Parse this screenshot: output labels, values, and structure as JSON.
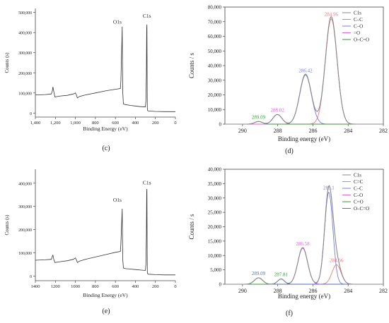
{
  "panels": [
    {
      "label": "(c)",
      "chart_data": {
        "type": "line",
        "xlabel": "Binding Energy (eV)",
        "ylabel": "Counts (s)",
        "xlim": [
          1400,
          0
        ],
        "ylim": [
          -20000,
          520000
        ],
        "x_ticks": [
          1400,
          1200,
          1000,
          800,
          600,
          400,
          200,
          0
        ],
        "x_tick_labels": [
          "1,400",
          "1,200",
          "1,000",
          "800",
          "600",
          "400",
          "200",
          "0"
        ],
        "y_ticks": [
          0,
          100000,
          200000,
          300000,
          400000,
          500000
        ],
        "y_tick_labels": [
          "0",
          "100,000",
          "200,000",
          "300,000",
          "400,000",
          "500,000"
        ],
        "annotations": [
          {
            "text": "O1s",
            "x": 531,
            "y": 445000
          },
          {
            "text": "C1s",
            "x": 285,
            "y": 475000
          }
        ],
        "series": [
          {
            "color": "#333333",
            "x": [
              1400,
              1300,
              1240,
              1230,
              1225,
              1215,
              1205,
              1150,
              1080,
              1020,
              1000,
              990,
              980,
              960,
              900,
              800,
              700,
              600,
              550,
              545,
              535,
              532,
              530,
              526,
              520,
              500,
              450,
              400,
              350,
              300,
              295,
              290,
              287,
              285,
              283,
              281,
              278,
              270,
              200,
              100,
              0
            ],
            "y": [
              90000,
              92000,
              95000,
              110000,
              130000,
              105000,
              80000,
              85000,
              88000,
              95000,
              100000,
              90000,
              75000,
              82000,
              90000,
              100000,
              110000,
              118000,
              122000,
              160000,
              350000,
              430000,
              300000,
              100000,
              45000,
              42000,
              38000,
              35000,
              32000,
              30000,
              60000,
              200000,
              420000,
              440000,
              200000,
              25000,
              12000,
              10000,
              8000,
              7000,
              7000
            ]
          }
        ]
      }
    },
    {
      "label": "(d)",
      "chart_data": {
        "type": "line",
        "xlabel": "Binding energy (eV)",
        "ylabel": "Counts / s",
        "xlim": [
          291,
          282
        ],
        "ylim": [
          0,
          80000
        ],
        "x_ticks": [
          290,
          288,
          286,
          284,
          282
        ],
        "y_ticks": [
          0,
          10000,
          20000,
          30000,
          40000,
          50000,
          60000,
          70000,
          80000
        ],
        "y_tick_labels": [
          "0",
          "10,000",
          "20,000",
          "30,000",
          "40,000",
          "50,000",
          "60,000",
          "70,000",
          "80,000"
        ],
        "legend": [
          "C1s",
          "C–C",
          "C–O",
          "=O",
          "O–C=O"
        ],
        "legend_position": "top-right",
        "peaks": [
          {
            "name": "C–C",
            "center": 284.96,
            "height": 72000,
            "width": 0.78,
            "color": "#f07878",
            "label": "284.96"
          },
          {
            "name": "C–O",
            "center": 286.42,
            "height": 33500,
            "width": 0.78,
            "color": "#7b7be0",
            "label": "286.42"
          },
          {
            "name": "=O",
            "center": 288.02,
            "height": 6500,
            "width": 0.6,
            "color": "#e060e0",
            "label": "288.02"
          },
          {
            "name": "O–C=O",
            "center": 289.09,
            "height": 1800,
            "width": 0.5,
            "color": "#3a9a3a",
            "label": "289.09"
          }
        ],
        "envelope_color": "#888888"
      }
    },
    {
      "label": "(e)",
      "chart_data": {
        "type": "line",
        "xlabel": "Binding Energy (eV)",
        "ylabel": "Counts (s)",
        "xlim": [
          1400,
          0
        ],
        "ylim": [
          -20000,
          460000
        ],
        "x_ticks": [
          1400,
          1200,
          1000,
          800,
          600,
          400,
          200,
          0
        ],
        "x_tick_labels": [
          "1400",
          "1200",
          "1000",
          "800",
          "600",
          "400",
          "200",
          "0"
        ],
        "y_ticks": [
          0,
          100000,
          200000,
          300000,
          400000
        ],
        "y_tick_labels": [
          "0",
          "100,000",
          "200,000",
          "300,000",
          "400,000"
        ],
        "annotations": [
          {
            "text": "O1s",
            "x": 531,
            "y": 320000
          },
          {
            "text": "C1s",
            "x": 285,
            "y": 395000
          }
        ],
        "series": [
          {
            "color": "#333333",
            "x": [
              1400,
              1300,
              1240,
              1230,
              1225,
              1215,
              1205,
              1150,
              1080,
              1020,
              1000,
              990,
              980,
              960,
              900,
              800,
              700,
              600,
              550,
              545,
              535,
              532,
              530,
              526,
              520,
              500,
              450,
              400,
              350,
              300,
              295,
              290,
              287,
              285,
              283,
              281,
              278,
              270,
              200,
              100,
              0
            ],
            "y": [
              68000,
              70000,
              72000,
              85000,
              90000,
              70000,
              58000,
              62000,
              66000,
              72000,
              78000,
              70000,
              58000,
              64000,
              72000,
              82000,
              92000,
              102000,
              106000,
              140000,
              250000,
              290000,
              200000,
              70000,
              35000,
              32000,
              30000,
              28000,
              26000,
              24000,
              50000,
              180000,
              360000,
              375000,
              160000,
              20000,
              10000,
              8000,
              6000,
              5000,
              5000
            ]
          }
        ]
      }
    },
    {
      "label": "(f)",
      "chart_data": {
        "type": "line",
        "xlabel": "Binding energy (eV)",
        "ylabel": "Counts / s",
        "xlim": [
          291,
          282
        ],
        "ylim": [
          0,
          40000
        ],
        "x_ticks": [
          290,
          288,
          286,
          284,
          282
        ],
        "y_ticks": [
          0,
          5000,
          10000,
          15000,
          20000,
          25000,
          30000,
          35000,
          40000
        ],
        "y_tick_labels": [
          "0",
          "5,000",
          "10,000",
          "15,000",
          "20,000",
          "25,000",
          "30,000",
          "35,000",
          "40,000"
        ],
        "legend": [
          "C1s",
          "C=C",
          "C–C",
          "C–O",
          "C=O",
          "O–C=O"
        ],
        "legend_position": "top-right",
        "peaks": [
          {
            "name": "C=C",
            "center": 284.66,
            "height": 6800,
            "width": 0.6,
            "color": "#f07878",
            "label": "284.66"
          },
          {
            "name": "C–C",
            "center": 285.1,
            "height": 32000,
            "width": 0.55,
            "color": "#7b7be0",
            "label": "285.1"
          },
          {
            "name": "C–O",
            "center": 286.58,
            "height": 12500,
            "width": 0.65,
            "color": "#e060e0",
            "label": "286.58"
          },
          {
            "name": "C=O",
            "center": 287.81,
            "height": 1800,
            "width": 0.45,
            "color": "#3a9a3a",
            "label": "287.81"
          },
          {
            "name": "O–C=O",
            "center": 289.09,
            "height": 2200,
            "width": 0.55,
            "color": "#5a6fb0",
            "label": "289.09"
          }
        ],
        "envelope_color": "#888888"
      }
    }
  ]
}
